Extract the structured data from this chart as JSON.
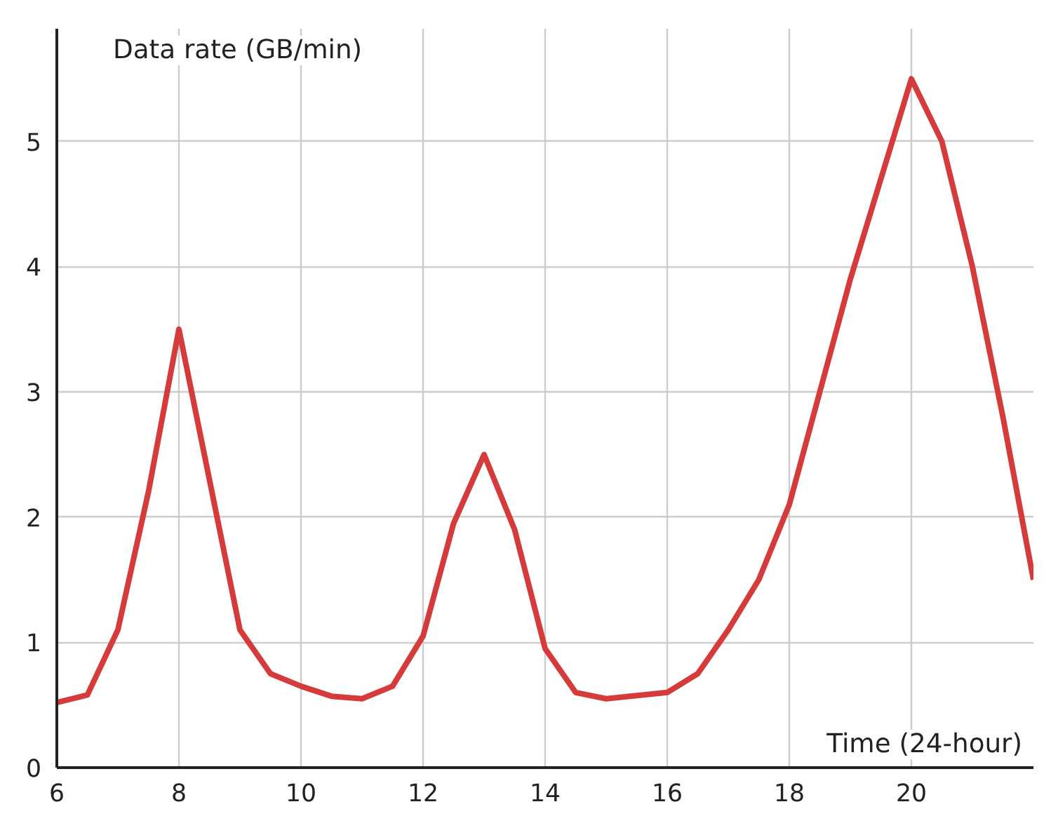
{
  "chart_data": {
    "type": "line",
    "xlabel": "Time (24-hour)",
    "ylabel": "Data rate (GB/min)",
    "x": [
      6,
      6.5,
      7,
      7.5,
      8,
      8.5,
      9,
      9.5,
      10,
      10.5,
      11,
      11.5,
      12,
      12.5,
      13,
      13.5,
      14,
      14.5,
      15,
      16,
      16.5,
      17,
      17.5,
      18,
      18.5,
      19,
      19.5,
      20,
      20.5,
      21,
      21.5,
      22
    ],
    "series": [
      {
        "color": "#d63b3b",
        "values": [
          0.52,
          0.58,
          1.1,
          2.2,
          3.5,
          2.3,
          1.1,
          0.75,
          0.65,
          0.57,
          0.55,
          0.65,
          1.05,
          1.95,
          2.5,
          1.9,
          0.95,
          0.6,
          0.55,
          0.6,
          0.75,
          1.1,
          1.5,
          2.1,
          3.0,
          3.9,
          4.7,
          5.5,
          5.0,
          4.0,
          2.8,
          1.5
        ]
      }
    ],
    "xlim": [
      6,
      22
    ],
    "ylim": [
      0,
      5.9
    ],
    "xticks": [
      6,
      8,
      10,
      12,
      14,
      16,
      18,
      20
    ],
    "yticks": [
      0,
      1,
      2,
      3,
      4,
      5
    ],
    "grid": true,
    "line_style": "solid",
    "marker": "none"
  }
}
